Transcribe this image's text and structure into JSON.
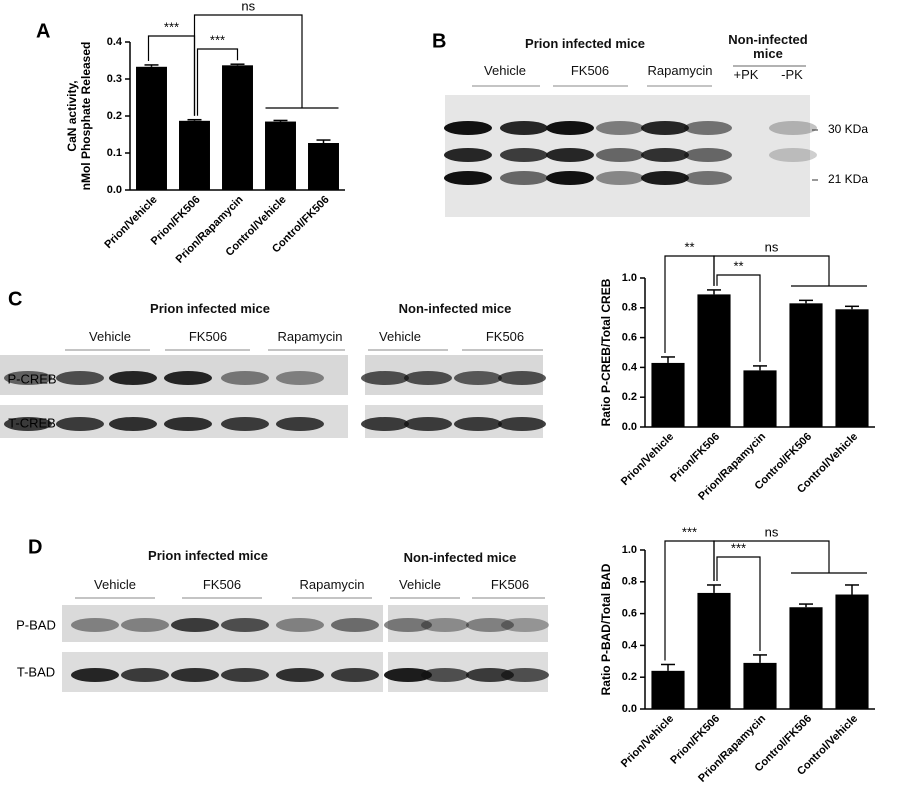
{
  "chart_data": [
    {
      "type": "bar",
      "panel": "A",
      "ylabel": [
        "CaN activity,",
        "nMol Phosphate Released"
      ],
      "categories": [
        "Prion/Vehicle",
        "Prion/FK506",
        "Prion/Rapamycin",
        "Control/Vehicle",
        "Control/FK506"
      ],
      "values": [
        0.333,
        0.187,
        0.337,
        0.185,
        0.127
      ],
      "errors": [
        0.005,
        0.003,
        0.003,
        0.003,
        0.008
      ],
      "color": "#000000",
      "ylim": [
        0,
        0.4
      ],
      "yticks": [
        {
          "value": 0,
          "label": "0.0"
        },
        0.1,
        0.2,
        0.3,
        0.4
      ],
      "annotations": [
        "***",
        "***",
        "ns"
      ]
    },
    {
      "type": "bar",
      "panel": "C",
      "ylabel": [
        "Ratio P-CREB/Total CREB"
      ],
      "categories": [
        "Prion/Vehicle",
        "Prion/FK506",
        "Prion/Rapamycin",
        "Control/FK506",
        "Control/Vehicle"
      ],
      "values": [
        0.43,
        0.89,
        0.38,
        0.83,
        0.79
      ],
      "errors": [
        0.04,
        0.03,
        0.03,
        0.02,
        0.02
      ],
      "color": "#000000",
      "ylim": [
        0,
        1
      ],
      "yticks": [
        {
          "value": 0,
          "label": "0.0"
        },
        0.2,
        0.4,
        0.6,
        0.8,
        {
          "value": 1,
          "label": "1.0"
        }
      ],
      "annotations": [
        "**",
        "**",
        "ns"
      ]
    },
    {
      "type": "bar",
      "panel": "D",
      "ylabel": [
        "Ratio P-BAD/Total BAD"
      ],
      "categories": [
        "Prion/Vehicle",
        "Prion/FK506",
        "Prion/Rapamycin",
        "Control/FK506",
        "Control/Vehicle"
      ],
      "values": [
        0.24,
        0.73,
        0.29,
        0.64,
        0.72
      ],
      "errors": [
        0.04,
        0.05,
        0.05,
        0.02,
        0.06
      ],
      "color": "#000000",
      "ylim": [
        0,
        1
      ],
      "yticks": [
        {
          "value": 0,
          "label": "0.0"
        },
        0.2,
        0.4,
        0.6,
        0.8,
        {
          "value": 1,
          "label": "1.0"
        }
      ],
      "annotations": [
        "***",
        "***",
        "ns"
      ]
    }
  ],
  "blots": [
    {
      "panel": "B",
      "groups": [
        "Prion infected mice",
        "Non-infected mice"
      ],
      "lanes": [
        "Vehicle",
        "FK506",
        "Rapamycin",
        "+PK",
        "-PK"
      ],
      "markers": [
        "30 KDa",
        "21 KDa"
      ]
    },
    {
      "panel": "C",
      "groups": [
        "Prion infected mice",
        "Non-infected mice"
      ],
      "lanes": [
        "Vehicle",
        "FK506",
        "Rapamycin",
        "Vehicle",
        "FK506"
      ],
      "rows": [
        "P-CREB",
        "T-CREB"
      ]
    },
    {
      "panel": "D",
      "groups": [
        "Prion infected mice",
        "Non-infected mice"
      ],
      "lanes": [
        "Vehicle",
        "FK506",
        "Rapamycin",
        "Vehicle",
        "FK506"
      ],
      "rows": [
        "P-BAD",
        "T-BAD"
      ]
    }
  ]
}
